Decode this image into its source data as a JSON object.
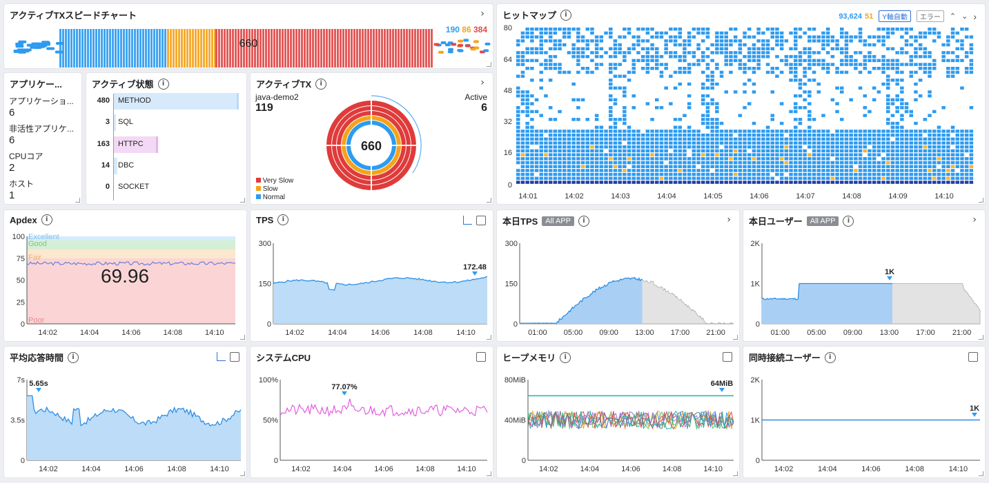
{
  "speed_chart": {
    "title": "アクティブTXスピードチャート",
    "center_value": "660",
    "normal": "190",
    "slow": "86",
    "very_slow": "384",
    "colors": {
      "normal": "#2d9bf0",
      "slow": "#f5a31a",
      "very_slow": "#e04848"
    }
  },
  "heatmap": {
    "title": "ヒットマップ",
    "count_total": "93,624",
    "count_error": "51",
    "y_auto_button": "Y軸自動",
    "error_button": "エラー",
    "y_ticks": [
      "80",
      "64",
      "48",
      "32",
      "16",
      "0"
    ],
    "x_ticks": [
      "14:01",
      "14:02",
      "14:03",
      "14:04",
      "14:05",
      "14:06",
      "14:07",
      "14:08",
      "14:09",
      "14:10"
    ]
  },
  "application": {
    "title": "アプリケー...",
    "items": [
      {
        "label": "アプリケーショ...",
        "value": "6"
      },
      {
        "label": "非活性アプリケ...",
        "value": "6"
      },
      {
        "label": "CPUコア",
        "value": "2"
      },
      {
        "label": "ホスト",
        "value": "1"
      }
    ]
  },
  "active_status": {
    "title": "アクティブ状態",
    "rows": [
      {
        "count": "480",
        "label": "METHOD",
        "fraction": 1.0,
        "color": "#d6eafb"
      },
      {
        "count": "3",
        "label": "SQL",
        "fraction": 0.01,
        "color": "#d6eafb"
      },
      {
        "count": "163",
        "label": "HTTPC",
        "fraction": 0.34,
        "color": "#f3d9f5"
      },
      {
        "count": "14",
        "label": "DBC",
        "fraction": 0.03,
        "color": "#d6eafb"
      },
      {
        "count": "0",
        "label": "SOCKET",
        "fraction": 0,
        "color": "#d6eafb"
      }
    ]
  },
  "active_tx": {
    "title": "アクティブTX",
    "agent": "java-demo2",
    "agent_value": "119",
    "active_label": "Active",
    "active_value": "6",
    "center": "660",
    "legend": [
      {
        "label": "Very Slow",
        "color": "#e03b3b"
      },
      {
        "label": "Slow",
        "color": "#f5a31a"
      },
      {
        "label": "Normal",
        "color": "#2d9bf0"
      }
    ]
  },
  "apdex": {
    "title": "Apdex",
    "value": "69.96",
    "bands": [
      "Excellent",
      "Good",
      "Fair",
      "Poor"
    ],
    "y_ticks": [
      "100",
      "75",
      "50",
      "25",
      "0"
    ],
    "x_ticks": [
      "14:02",
      "14:04",
      "14:06",
      "14:08",
      "14:10"
    ]
  },
  "tps": {
    "title": "TPS",
    "current": "172.48",
    "y_ticks": [
      "300",
      "150",
      "0"
    ],
    "x_ticks": [
      "14:02",
      "14:04",
      "14:06",
      "14:08",
      "14:10"
    ]
  },
  "today_tps": {
    "title": "本日TPS",
    "tag": "All APP",
    "y_ticks": [
      "300",
      "150",
      "0"
    ],
    "x_ticks": [
      "01:00",
      "05:00",
      "09:00",
      "13:00",
      "17:00",
      "21:00"
    ]
  },
  "today_users": {
    "title": "本日ユーザー",
    "tag": "All APP",
    "marker": "1K",
    "y_ticks": [
      "2K",
      "1K",
      "0"
    ],
    "x_ticks": [
      "01:00",
      "05:00",
      "09:00",
      "13:00",
      "17:00",
      "21:00"
    ]
  },
  "avg_response": {
    "title": "平均応答時間",
    "marker": "5.65s",
    "y_ticks": [
      "7s",
      "3.5s",
      "0"
    ],
    "x_ticks": [
      "14:02",
      "14:04",
      "14:06",
      "14:08",
      "14:10"
    ]
  },
  "system_cpu": {
    "title": "システムCPU",
    "marker": "77.07%",
    "y_ticks": [
      "100%",
      "50%",
      "0"
    ],
    "x_ticks": [
      "14:02",
      "14:04",
      "14:06",
      "14:08",
      "14:10"
    ]
  },
  "heap_memory": {
    "title": "ヒープメモリ",
    "marker": "64MiB",
    "y_ticks": [
      "80MiB",
      "40MiB",
      "0"
    ],
    "x_ticks": [
      "14:02",
      "14:04",
      "14:06",
      "14:08",
      "14:10"
    ]
  },
  "concurrent_users": {
    "title": "同時接続ユーザー",
    "marker": "1K",
    "y_ticks": [
      "2K",
      "1K",
      "0"
    ],
    "x_ticks": [
      "14:02",
      "14:04",
      "14:06",
      "14:08",
      "14:10"
    ]
  }
}
